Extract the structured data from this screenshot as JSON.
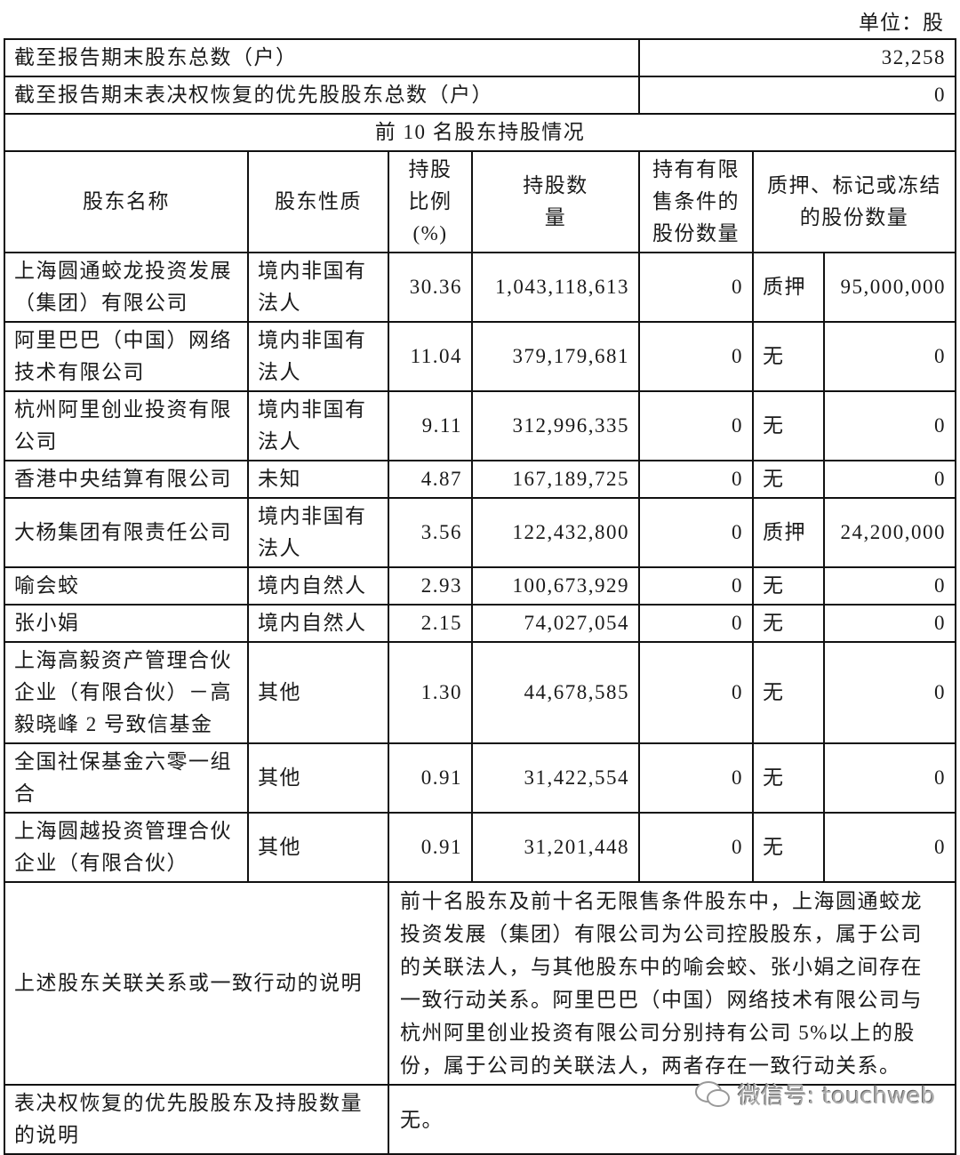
{
  "unit_label": "单位：股",
  "summary": [
    {
      "label": "截至报告期末股东总数（户）",
      "value": "32,258"
    },
    {
      "label": "截至报告期末表决权恢复的优先股股东总数（户）",
      "value": "0"
    }
  ],
  "section_title": "前 10 名股东持股情况",
  "headers": [
    "股东名称",
    "股东性质",
    "持股比例(%)",
    "持股数量",
    "持有有限售条件的股份数量",
    "质押、标记或冻结的股份数量"
  ],
  "rows": [
    {
      "name": "上海圆通蛟龙投资发展（集团）有限公司",
      "nature": "境内非国有法人",
      "ratio": "30.36",
      "shares": "1,043,118,613",
      "restricted": "0",
      "pledge_status": "质押",
      "pledge_count": "95,000,000"
    },
    {
      "name": "阿里巴巴（中国）网络技术有限公司",
      "nature": "境内非国有法人",
      "ratio": "11.04",
      "shares": "379,179,681",
      "restricted": "0",
      "pledge_status": "无",
      "pledge_count": "0"
    },
    {
      "name": "杭州阿里创业投资有限公司",
      "nature": "境内非国有法人",
      "ratio": "9.11",
      "shares": "312,996,335",
      "restricted": "0",
      "pledge_status": "无",
      "pledge_count": "0"
    },
    {
      "name": "香港中央结算有限公司",
      "nature": "未知",
      "ratio": "4.87",
      "shares": "167,189,725",
      "restricted": "0",
      "pledge_status": "无",
      "pledge_count": "0"
    },
    {
      "name": "大杨集团有限责任公司",
      "nature": "境内非国有法人",
      "ratio": "3.56",
      "shares": "122,432,800",
      "restricted": "0",
      "pledge_status": "质押",
      "pledge_count": "24,200,000"
    },
    {
      "name": "喻会蛟",
      "nature": "境内自然人",
      "ratio": "2.93",
      "shares": "100,673,929",
      "restricted": "0",
      "pledge_status": "无",
      "pledge_count": "0"
    },
    {
      "name": "张小娟",
      "nature": "境内自然人",
      "ratio": "2.15",
      "shares": "74,027,054",
      "restricted": "0",
      "pledge_status": "无",
      "pledge_count": "0"
    },
    {
      "name": "上海高毅资产管理合伙企业（有限合伙）－高毅晓峰 2 号致信基金",
      "nature": "其他",
      "ratio": "1.30",
      "shares": "44,678,585",
      "restricted": "0",
      "pledge_status": "无",
      "pledge_count": "0"
    },
    {
      "name": "全国社保基金六零一组合",
      "nature": "其他",
      "ratio": "0.91",
      "shares": "31,422,554",
      "restricted": "0",
      "pledge_status": "无",
      "pledge_count": "0"
    },
    {
      "name": "上海圆越投资管理合伙企业（有限合伙）",
      "nature": "其他",
      "ratio": "0.91",
      "shares": "31,201,448",
      "restricted": "0",
      "pledge_status": "无",
      "pledge_count": "0"
    }
  ],
  "notes": [
    {
      "label": "上述股东关联关系或一致行动的说明",
      "text": "前十名股东及前十名无限售条件股东中，上海圆通蛟龙投资发展（集团）有限公司为公司控股股东，属于公司的关联法人，与其他股东中的喻会蛟、张小娟之间存在一致行动关系。阿里巴巴（中国）网络技术有限公司与杭州阿里创业投资有限公司分别持有公司 5%以上的股份，属于公司的关联法人，两者存在一致行动关系。"
    },
    {
      "label": "表决权恢复的优先股股东及持股数量的说明",
      "text": "无。"
    }
  ],
  "watermark": "微信号: touchweb"
}
